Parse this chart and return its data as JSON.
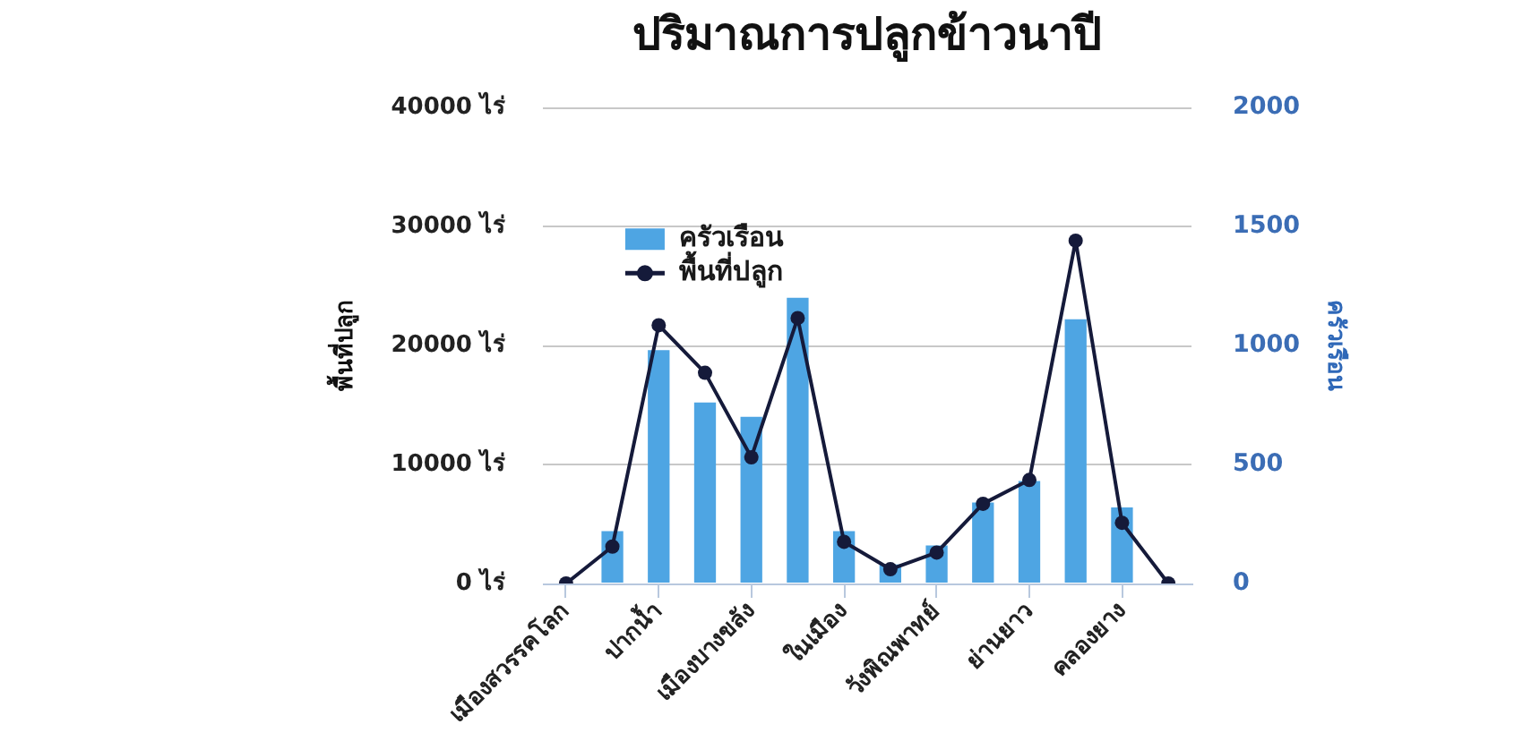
{
  "chart_data": {
    "type": "bar",
    "title": "ปริมาณการปลูกข้าวนาปี",
    "ylabel": "พื้นที่ปลูก",
    "y2label": "ครัวเรือน",
    "categories": [
      "เมืองสวรรคโลก",
      null,
      "ปากน้ำ",
      null,
      "เมืองบางขลัง",
      null,
      "ในเมือง",
      null,
      "วังพิณพาทย์",
      null,
      "ย่านยาว",
      null,
      "คลองยาง",
      null
    ],
    "series": [
      {
        "name": "ครัวเรือน",
        "axis": "y2",
        "color": "#4ea5e3",
        "values": [
          null,
          220,
          980,
          760,
          700,
          1200,
          220,
          80,
          160,
          340,
          430,
          1110,
          320,
          null
        ]
      },
      {
        "name": "พื้นที่ปลูก",
        "type": "line",
        "color": "#151a3a",
        "values": [
          0,
          3100,
          21700,
          17700,
          10600,
          22300,
          3500,
          1200,
          2600,
          6700,
          8700,
          28800,
          5100,
          0
        ]
      }
    ],
    "ylim": [
      0,
      40000
    ],
    "yticks": [
      {
        "value": 0,
        "label": "0 ไร่"
      },
      {
        "value": 10000,
        "label": "10000 ไร่"
      },
      {
        "value": 20000,
        "label": "20000 ไร่"
      },
      {
        "value": 30000,
        "label": "30000 ไร่"
      },
      {
        "value": 40000,
        "label": "40000 ไร่"
      }
    ],
    "y2lim": [
      0,
      2000
    ],
    "y2ticks": [
      0,
      500,
      1000,
      1500,
      2000
    ],
    "grid": "y",
    "legend": "top left",
    "marker": "circle",
    "line_style": "solid"
  }
}
